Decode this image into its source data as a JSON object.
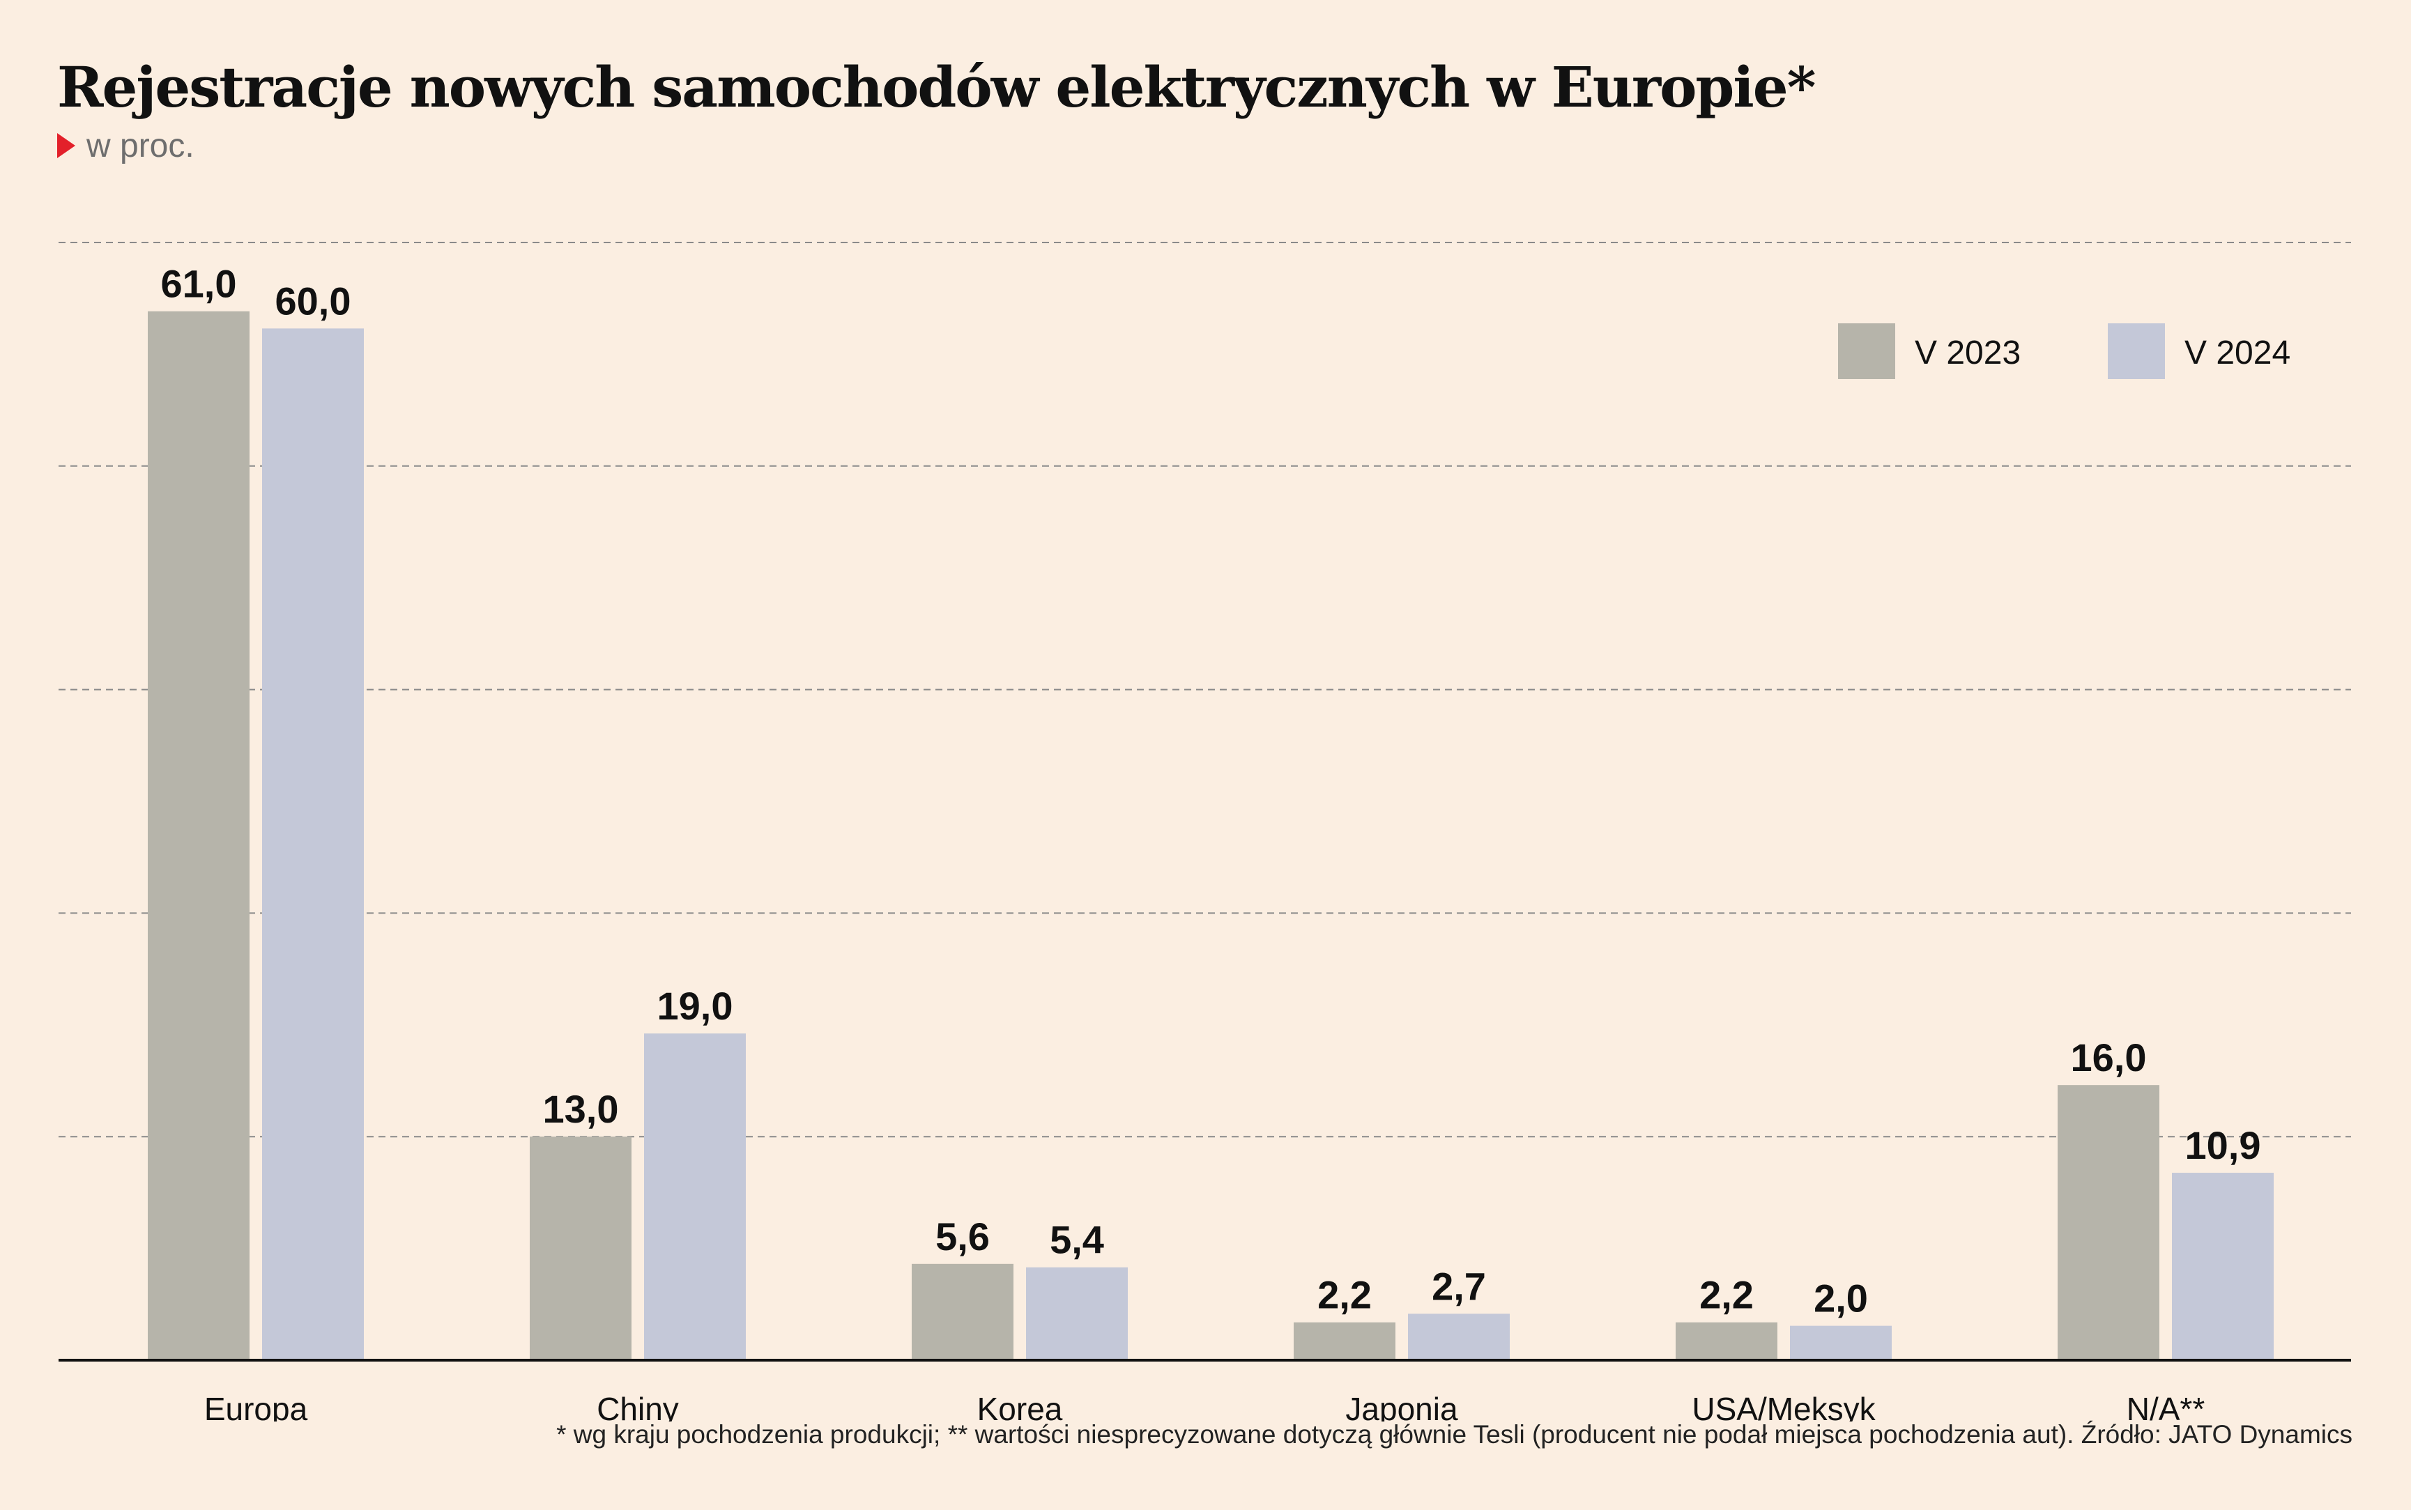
{
  "header": {
    "title": "Rejestracje nowych samochodów elektrycznych w Europie*",
    "subtitle": "w proc."
  },
  "chart_data": {
    "type": "bar",
    "categories": [
      "Europa",
      "Chiny",
      "Korea",
      "Japonia",
      "USA/Meksyk",
      "N/A**"
    ],
    "series": [
      {
        "name": "V 2023",
        "color": "#b6b4aa",
        "values": [
          61.0,
          13.0,
          5.6,
          2.2,
          2.2,
          16.0
        ],
        "labels": [
          "61,0",
          "13,0",
          "5,6",
          "2,2",
          "2,2",
          "16,0"
        ]
      },
      {
        "name": "V 2024",
        "color": "#c4c8d8",
        "values": [
          60.0,
          19.0,
          5.4,
          2.7,
          2.0,
          10.9
        ],
        "labels": [
          "60,0",
          "19,0",
          "5,4",
          "2,7",
          "2,0",
          "10,9"
        ]
      }
    ],
    "ylim": [
      0,
      65
    ],
    "gridlines": [
      13,
      26,
      39,
      52,
      65
    ],
    "grid": true,
    "grid_style": "dashed",
    "legend_position": "top-right"
  },
  "footnote": "* wg kraju pochodzenia produkcji; ** wartości niesprecyzowane dotyczą głównie Tesli (producent nie podał miejsca pochodzenia aut). Źródło: JATO Dynamics"
}
